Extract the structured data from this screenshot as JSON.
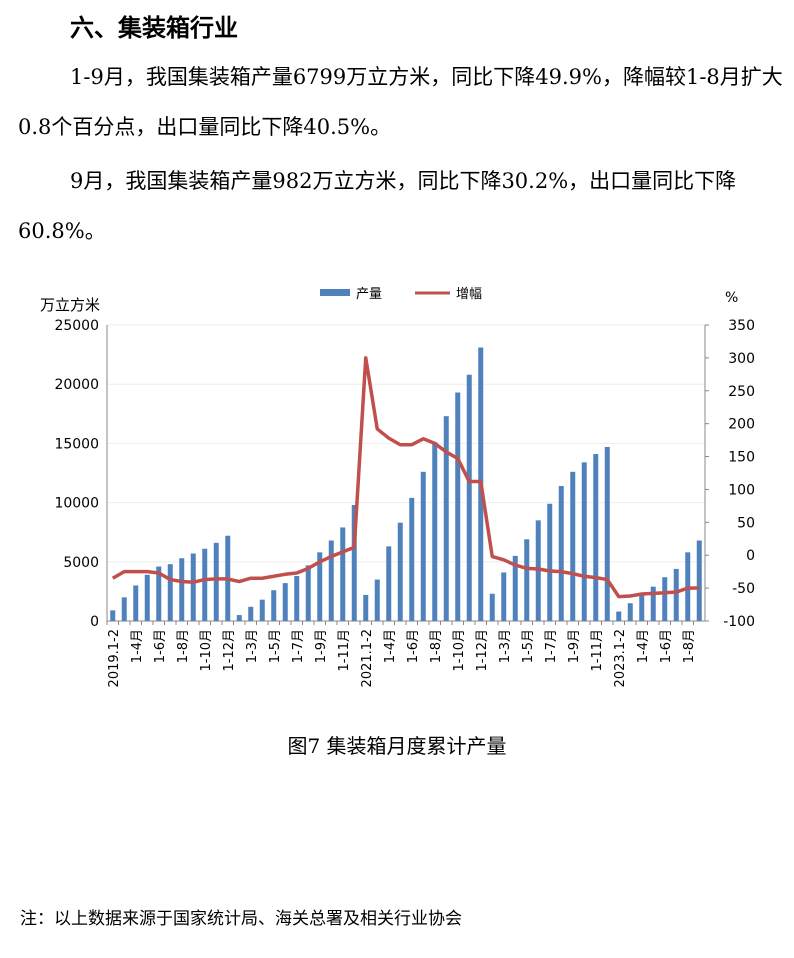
{
  "heading": "六、集装箱行业",
  "paragraphs": [
    "1-9月，我国集装箱产量6799万立方米，同比下降49.9%，降幅较1-8月扩大0.8个百分点，出口量同比下降40.5%。",
    "9月，我国集装箱产量982万立方米，同比下降30.2%，出口量同比下降60.8%。"
  ],
  "caption": "图7 集装箱月度累计产量",
  "note": "注：以上数据来源于国家统计局、海关总署及相关行业协会",
  "chart_data": {
    "type": "bar+line",
    "left_unit": "万立方米",
    "right_unit": "%",
    "ylim_left": [
      0,
      25000
    ],
    "yticks_left": [
      0,
      5000,
      10000,
      15000,
      20000,
      25000
    ],
    "ylim_right": [
      -100,
      350
    ],
    "yticks_right": [
      -100,
      -50,
      0,
      50,
      100,
      150,
      200,
      250,
      300,
      350
    ],
    "grid": true,
    "legend_position": "top",
    "colors": {
      "bar": "#4f81bd",
      "line": "#c0504d"
    },
    "categories": [
      "2019.1-2",
      "1-3月",
      "1-4月",
      "1-5月",
      "1-6月",
      "1-7月",
      "1-8月",
      "1-9月",
      "1-10月",
      "1-11月",
      "1-12月",
      "2020.1-2",
      "1-3月",
      "1-4月",
      "1-5月",
      "1-6月",
      "1-7月",
      "1-8月",
      "1-9月",
      "1-10月",
      "1-11月",
      "1-12月",
      "2021.1-2",
      "1-3月",
      "1-4月",
      "1-5月",
      "1-6月",
      "1-7月",
      "1-8月",
      "1-9月",
      "1-10月",
      "1-11月",
      "1-12月",
      "2022.1-2",
      "1-3月",
      "1-4月",
      "1-5月",
      "1-6月",
      "1-7月",
      "1-8月",
      "1-9月",
      "1-10月",
      "1-11月",
      "1-12月",
      "2023.1-2",
      "1-3月",
      "1-4月",
      "1-5月",
      "1-6月",
      "1-7月",
      "1-8月",
      "1-9月"
    ],
    "tick_labels": [
      "2019.1-2",
      "1-4月",
      "1-6月",
      "1-8月",
      "1-10月",
      "1-12月",
      "1-3月",
      "1-5月",
      "1-7月",
      "1-9月",
      "1-11月",
      "2021.1-2",
      "1-4月",
      "1-6月",
      "1-8月",
      "1-10月",
      "1-12月",
      "1-3月",
      "1-5月",
      "1-7月",
      "1-9月",
      "1-11月",
      "2023.1-2",
      "1-4月",
      "1-6月",
      "1-8月"
    ],
    "series": [
      {
        "name": "产量",
        "type": "bar",
        "axis": "left",
        "values": [
          900,
          2000,
          3000,
          3900,
          4600,
          4800,
          5300,
          5700,
          6100,
          6600,
          7200,
          500,
          1200,
          1800,
          2600,
          3200,
          3800,
          4700,
          5800,
          6800,
          7900,
          9800,
          2200,
          3500,
          6300,
          8300,
          10400,
          12600,
          15100,
          17300,
          19300,
          20800,
          23100,
          2300,
          4100,
          5500,
          6900,
          8500,
          9900,
          11400,
          12600,
          13400,
          14100,
          14700,
          800,
          1500,
          2300,
          2900,
          3700,
          4400,
          5800,
          6799
        ]
      },
      {
        "name": "增幅",
        "type": "line",
        "axis": "right",
        "values": [
          -35,
          -25,
          -25,
          -25,
          -27,
          -37,
          -40,
          -41,
          -37,
          -36,
          -36,
          -40,
          -35,
          -35,
          -32,
          -29,
          -27,
          -20,
          -10,
          -2,
          5,
          12,
          300,
          192,
          178,
          168,
          168,
          177,
          170,
          157,
          147,
          112,
          112,
          -2,
          -7,
          -15,
          -20,
          -21,
          -24,
          -25,
          -28,
          -32,
          -34,
          -37,
          -63,
          -62,
          -59,
          -58,
          -57,
          -56,
          -50,
          -49.9
        ]
      }
    ]
  }
}
